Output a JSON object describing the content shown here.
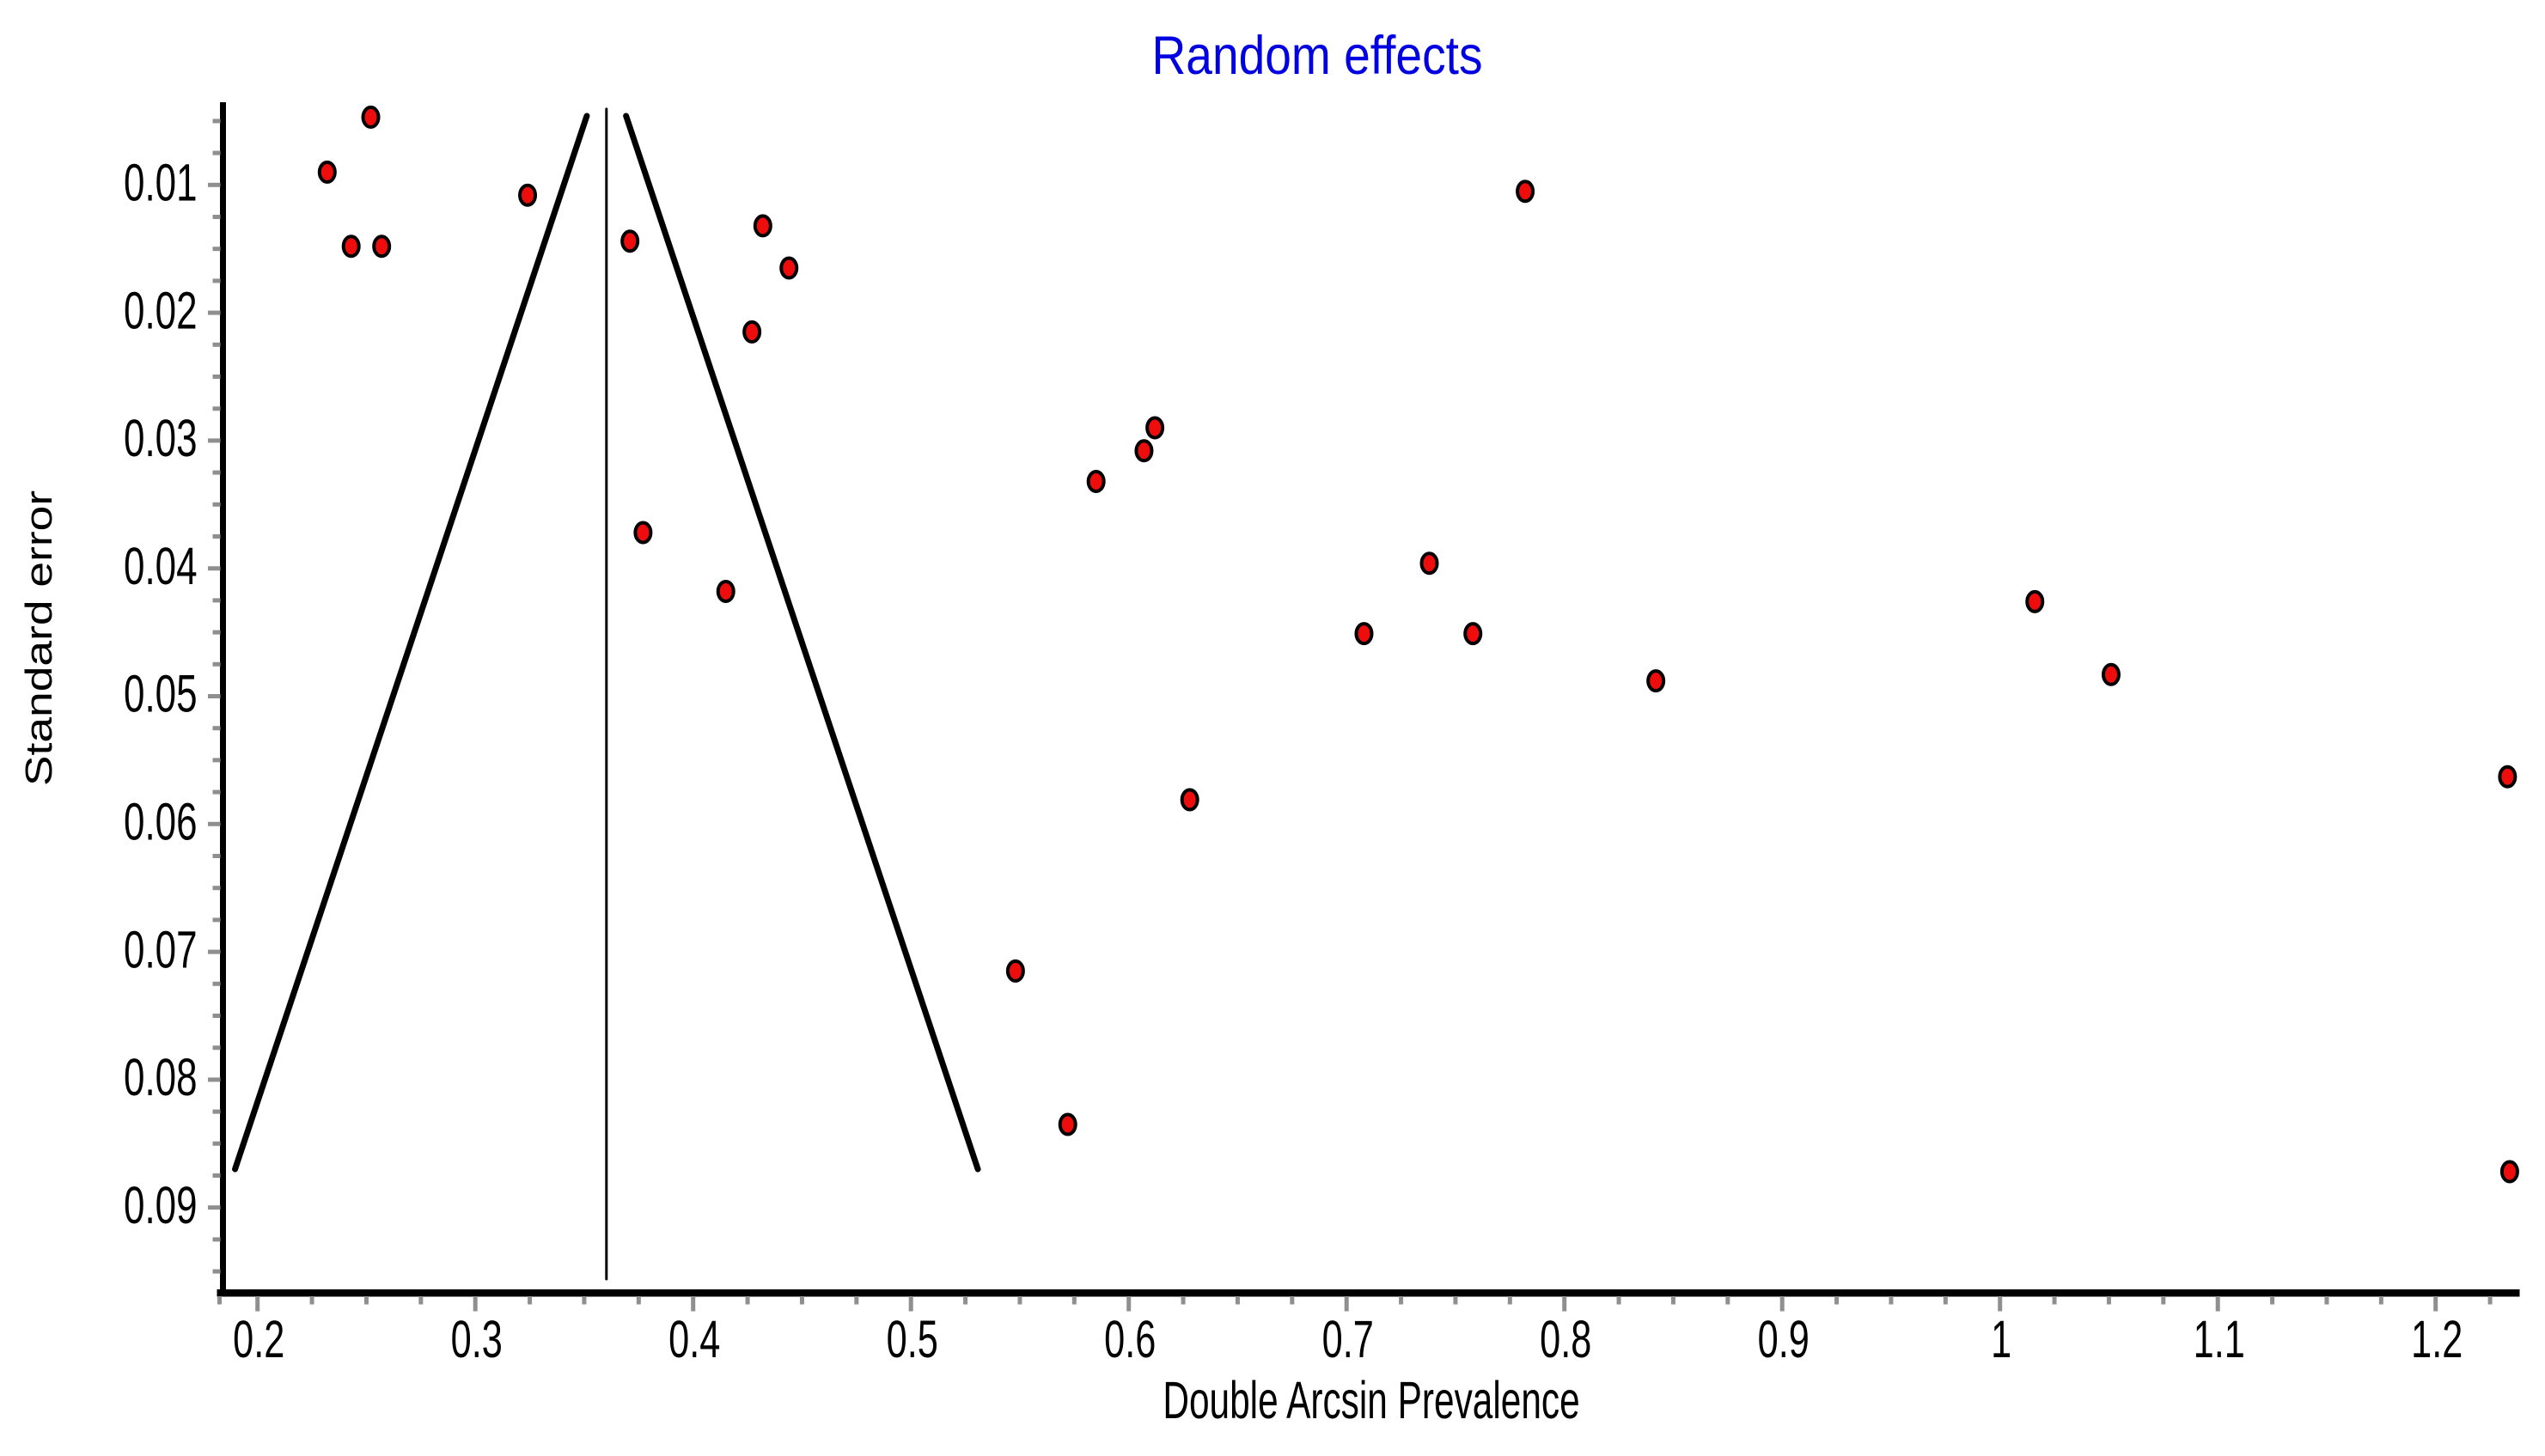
{
  "title": {
    "text": "Random effects",
    "color": "#0000E0"
  },
  "axes": {
    "x": {
      "label": "Double Arcsin Prevalence",
      "tick_labels": [
        "0.2",
        "0.3",
        "0.4",
        "0.5",
        "0.6",
        "0.7",
        "0.8",
        "0.9",
        "1",
        "1.1",
        "1.2"
      ],
      "tick_values": [
        0.2,
        0.3,
        0.4,
        0.5,
        0.6,
        0.7,
        0.8,
        0.9,
        1.0,
        1.1,
        1.2
      ],
      "minor_step": 0.025,
      "range": [
        0.183,
        1.2385
      ]
    },
    "y": {
      "label": "Standard error",
      "tick_labels": [
        "0.01",
        "0.02",
        "0.03",
        "0.04",
        "0.05",
        "0.06",
        "0.07",
        "0.08",
        "0.09"
      ],
      "tick_values": [
        0.01,
        0.02,
        0.03,
        0.04,
        0.05,
        0.06,
        0.07,
        0.08,
        0.09
      ],
      "minor_step": 0.0025,
      "minor_from": 0.005,
      "minor_to": 0.095,
      "range_top_to_bottom": [
        0.0035,
        0.0968
      ],
      "inverted": true
    }
  },
  "chart_data": {
    "type": "scatter",
    "title": "Random effects",
    "xlabel": "Double Arcsin Prevalence",
    "ylabel": "Standard error",
    "xlim": [
      0.183,
      1.2385
    ],
    "ylim": [
      0.0968,
      0.0035
    ],
    "grid": false,
    "legend": false,
    "points": [
      {
        "x": 0.252,
        "se": 0.0047
      },
      {
        "x": 0.232,
        "se": 0.009
      },
      {
        "x": 0.243,
        "se": 0.0148
      },
      {
        "x": 0.257,
        "se": 0.0148
      },
      {
        "x": 0.324,
        "se": 0.0108
      },
      {
        "x": 0.371,
        "se": 0.0144
      },
      {
        "x": 0.432,
        "se": 0.0132
      },
      {
        "x": 0.444,
        "se": 0.0165
      },
      {
        "x": 0.427,
        "se": 0.0215
      },
      {
        "x": 0.377,
        "se": 0.0372
      },
      {
        "x": 0.415,
        "se": 0.0418
      },
      {
        "x": 0.782,
        "se": 0.0105
      },
      {
        "x": 0.612,
        "se": 0.029
      },
      {
        "x": 0.607,
        "se": 0.0308
      },
      {
        "x": 0.585,
        "se": 0.0332
      },
      {
        "x": 0.738,
        "se": 0.0396
      },
      {
        "x": 0.708,
        "se": 0.0451
      },
      {
        "x": 0.758,
        "se": 0.0451
      },
      {
        "x": 1.016,
        "se": 0.0426
      },
      {
        "x": 1.051,
        "se": 0.0483
      },
      {
        "x": 0.842,
        "se": 0.0488
      },
      {
        "x": 0.628,
        "se": 0.0581
      },
      {
        "x": 1.233,
        "se": 0.0563
      },
      {
        "x": 0.548,
        "se": 0.0715
      },
      {
        "x": 0.572,
        "se": 0.0835
      },
      {
        "x": 1.234,
        "se": 0.0872
      }
    ],
    "funnel": {
      "pooled_estimate": 0.3602,
      "z": 1.96,
      "se_top": 0.0046,
      "se_bottom": 0.087,
      "pooled_line_se_from": 0.00406,
      "pooled_line_se_to": 0.0956
    },
    "marker": {
      "fill": "#EE0D0D",
      "outline": "#000000"
    },
    "colors": {
      "axis": "#000000",
      "ticks": "#8F8F8F",
      "funnel_lines": "#000000",
      "title": "#0000E0",
      "text": "#000000"
    }
  }
}
